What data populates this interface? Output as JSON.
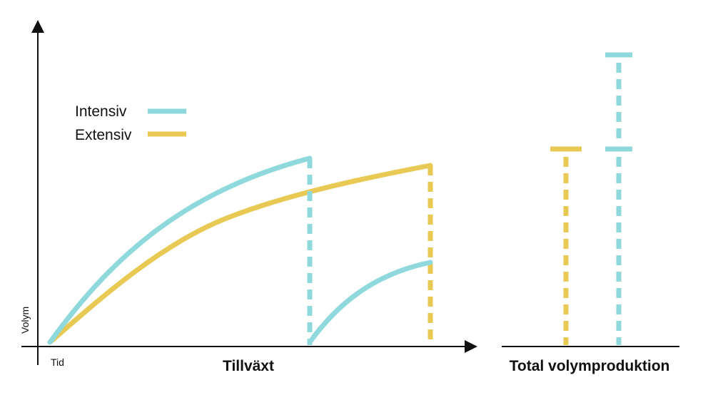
{
  "colors": {
    "intensive": "#8fd9dc",
    "extensive": "#e8c953",
    "axis": "#111111"
  },
  "axis": {
    "y_label": "Volym",
    "origin_label": "Tid"
  },
  "legend": {
    "items": [
      {
        "label": "Intensiv",
        "color": "#8fd9dc"
      },
      {
        "label": "Extensiv",
        "color": "#e8c953"
      }
    ]
  },
  "titles": {
    "growth": "Tillväxt",
    "total": "Total volymproduktion"
  }
}
